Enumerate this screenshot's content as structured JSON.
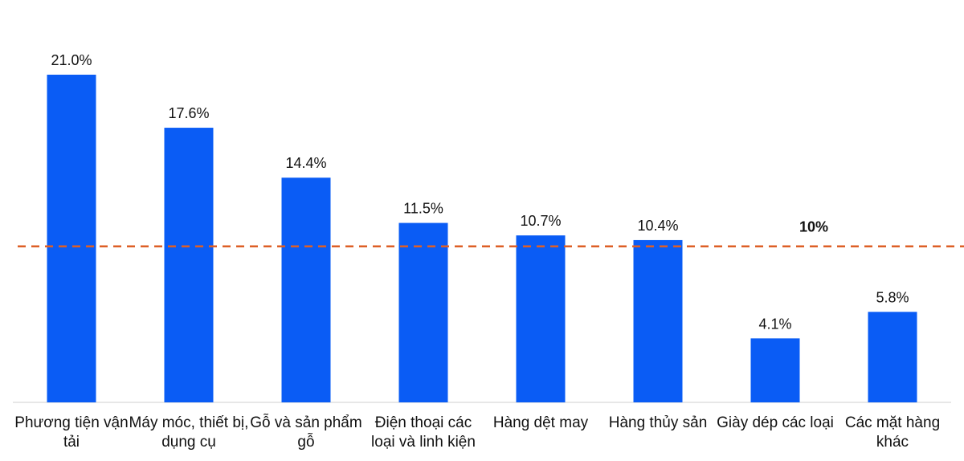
{
  "chart_data": {
    "type": "bar",
    "categories": [
      "Phương tiện vận tải",
      "Máy móc, thiết bị, dụng cụ",
      "Gỗ và sản phẩm gỗ",
      "Điện thoại các loại và linh kiện",
      "Hàng dệt may",
      "Hàng thủy sản",
      "Giày dép các loại",
      "Các mặt hàng khác"
    ],
    "values": [
      21.0,
      17.6,
      14.4,
      11.5,
      10.7,
      10.4,
      4.1,
      5.8
    ],
    "value_labels": [
      "21.0%",
      "17.6%",
      "14.4%",
      "11.5%",
      "10.7%",
      "10.4%",
      "4.1%",
      "5.8%"
    ],
    "color": "#0a5cf5",
    "reference_line": {
      "value": 10,
      "label": "10%",
      "color": "#dd5f26"
    }
  }
}
